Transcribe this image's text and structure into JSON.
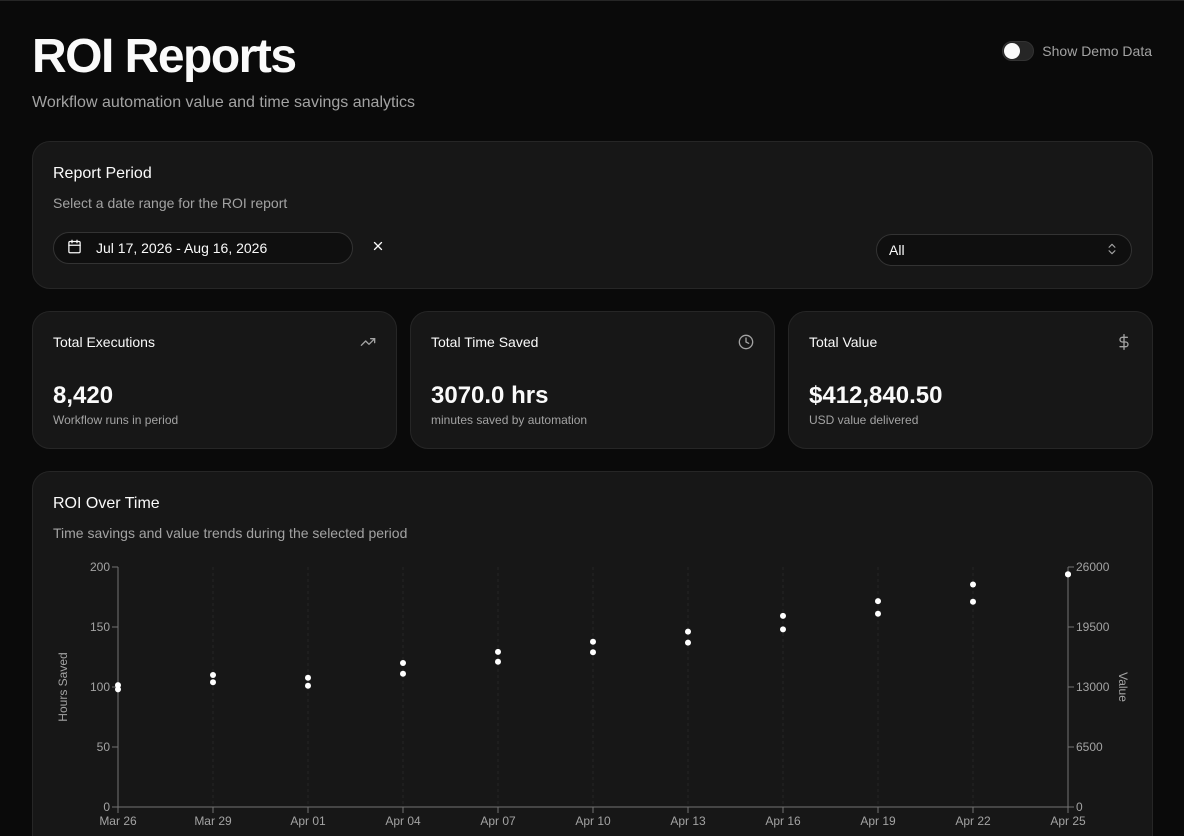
{
  "header": {
    "title": "ROI Reports",
    "subtitle": "Workflow automation value and time savings analytics",
    "demo_toggle_label": "Show Demo Data",
    "demo_toggle_on": false
  },
  "period": {
    "title": "Report Period",
    "description": "Select a date range for the ROI report",
    "date_range": "Jul 17, 2026 - Aug 16, 2026",
    "filter_value": "All"
  },
  "stats": [
    {
      "title": "Total Executions",
      "value": "8,420",
      "sub": "Workflow runs in period",
      "icon": "trending-up-icon"
    },
    {
      "title": "Total Time Saved",
      "value": "3070.0 hrs",
      "sub": "minutes saved by automation",
      "icon": "clock-icon"
    },
    {
      "title": "Total Value",
      "value": "$412,840.50",
      "sub": "USD value delivered",
      "icon": "dollar-icon"
    }
  ],
  "chart_section": {
    "title": "ROI Over Time",
    "description": "Time savings and value trends during the selected period"
  },
  "chart_data": {
    "type": "scatter",
    "categories": [
      "Mar 26",
      "Mar 29",
      "Apr 01",
      "Apr 04",
      "Apr 07",
      "Apr 10",
      "Apr 13",
      "Apr 16",
      "Apr 19",
      "Apr 22",
      "Apr 25"
    ],
    "series": [
      {
        "axis": "left",
        "values": [
          98,
          104,
          101,
          111,
          121,
          129,
          137,
          148,
          161,
          171,
          194
        ]
      },
      {
        "axis": "right",
        "values": [
          13200,
          14300,
          14000,
          15600,
          16800,
          17900,
          19000,
          20700,
          22300,
          24100,
          25200
        ]
      }
    ],
    "ylabel": "Hours Saved",
    "y2label": "Value",
    "ylim": [
      0,
      200
    ],
    "y2lim": [
      0,
      26000
    ],
    "yticks": [
      "0",
      "50",
      "100",
      "150",
      "200"
    ],
    "y2ticks": [
      "0",
      "6500",
      "13000",
      "19500",
      "26000"
    ],
    "grid": true
  }
}
